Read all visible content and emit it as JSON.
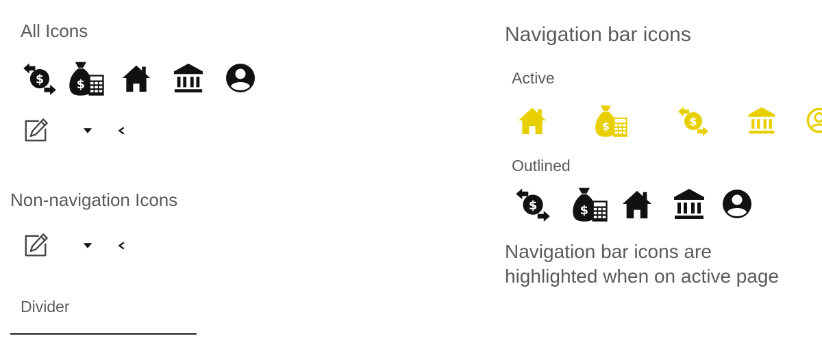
{
  "left": {
    "all_icons_title": "All Icons",
    "non_nav_title": "Non-navigation Icons",
    "divider_label": "Divider",
    "all_icons": [
      "transfer-money-icon",
      "money-bag-calculator-icon",
      "home-icon",
      "bank-icon",
      "account-circle-icon"
    ],
    "util_icons": [
      "edit-icon",
      "caret-down-icon",
      "chevron-left-icon"
    ]
  },
  "right": {
    "title": "Navigation bar icons",
    "active_label": "Active",
    "outlined_label": "Outlined",
    "note": "Navigation bar icons are highlighted when on active page",
    "active_icons": [
      "home-icon",
      "money-bag-calculator-icon",
      "transfer-money-icon",
      "bank-icon",
      "account-circle-icon"
    ],
    "outlined_icons": [
      "transfer-money-icon",
      "money-bag-calculator-icon",
      "home-icon",
      "bank-icon",
      "account-circle-icon"
    ]
  },
  "colors": {
    "icon_dark": "#111111",
    "icon_active": "#e8d000",
    "text": "#5a5a5a",
    "divider": "#222222"
  }
}
